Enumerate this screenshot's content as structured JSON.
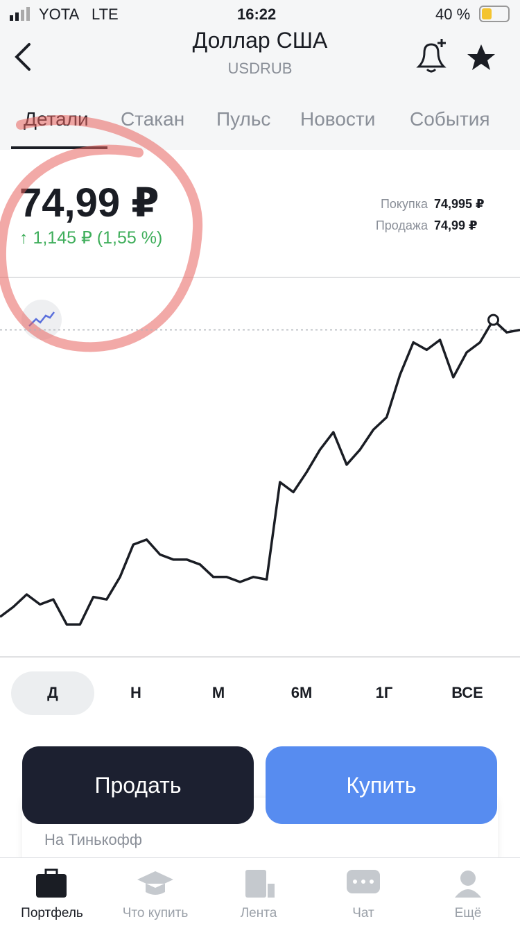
{
  "status_bar": {
    "carrier": "YOTA",
    "network": "LTE",
    "time": "16:22",
    "battery": "40 %"
  },
  "header": {
    "title": "Доллар США",
    "ticker": "USDRUB"
  },
  "tabs": [
    "Детали",
    "Стакан",
    "Пульс",
    "Новости",
    "События"
  ],
  "quote": {
    "price": "74,99 ₽",
    "change": "1,145 ₽ (1,55 %)",
    "buy_label": "Покупка",
    "buy": "74,995 ₽",
    "sell_label": "Продажа",
    "sell": "74,99 ₽"
  },
  "chart_data": {
    "type": "line",
    "color": "#1a1d24",
    "ylim": [
      73.68,
      75.2
    ],
    "values": [
      73.84,
      73.88,
      73.93,
      73.89,
      73.91,
      73.81,
      73.81,
      73.92,
      73.91,
      74.0,
      74.13,
      74.15,
      74.09,
      74.07,
      74.07,
      74.05,
      74.0,
      74.0,
      73.98,
      74.0,
      73.99,
      74.38,
      74.34,
      74.42,
      74.51,
      74.58,
      74.45,
      74.51,
      74.59,
      74.64,
      74.81,
      74.94,
      74.91,
      74.95,
      74.8,
      74.9,
      74.94,
      75.03,
      74.98,
      74.99
    ]
  },
  "periods": [
    "Д",
    "Н",
    "М",
    "6М",
    "1Г",
    "ВСЕ"
  ],
  "actions": {
    "sell": "Продать",
    "buy": "Купить"
  },
  "account": "На Тинькофф",
  "tab_bar": [
    "Портфель",
    "Что купить",
    "Лента",
    "Чат",
    "Ещё"
  ]
}
